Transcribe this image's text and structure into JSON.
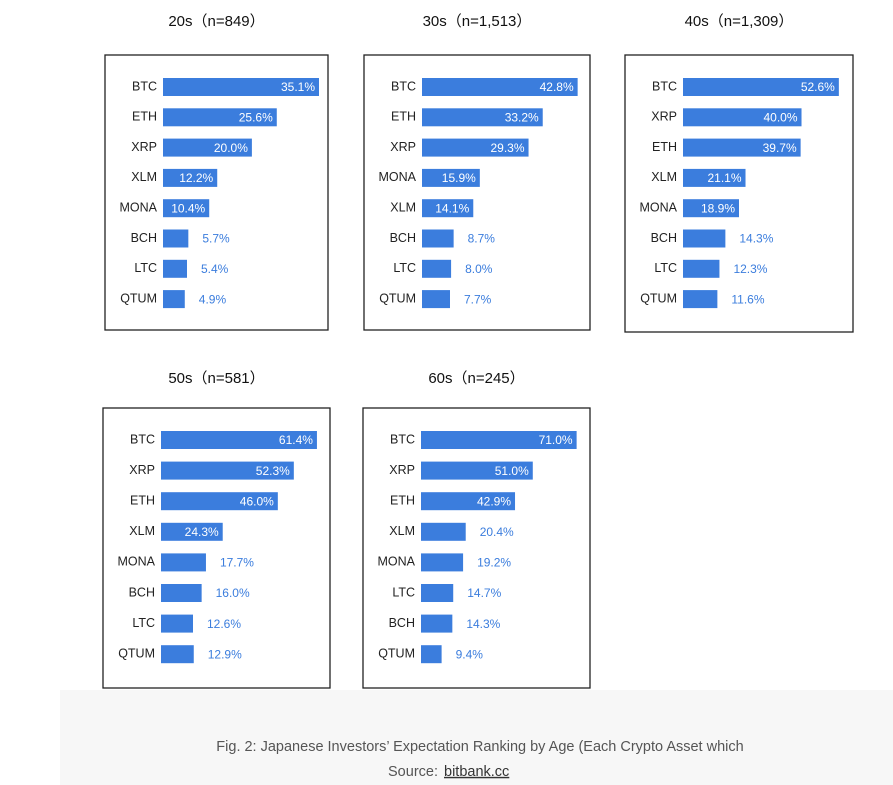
{
  "chart_data": [
    {
      "type": "bar",
      "orientation": "horizontal",
      "title": "20s（n=849）",
      "color": "#3b7ddd",
      "categories": [
        "BTC",
        "ETH",
        "XRP",
        "XLM",
        "MONA",
        "BCH",
        "LTC",
        "QTUM"
      ],
      "values": [
        35.1,
        25.6,
        20.0,
        12.2,
        10.4,
        5.7,
        5.4,
        4.9
      ],
      "value_labels": [
        "35.1%",
        "25.6%",
        "20.0%",
        "12.2%",
        "10.4%",
        "5.7%",
        "5.4%",
        "4.9%"
      ],
      "xlim": [
        0,
        36
      ]
    },
    {
      "type": "bar",
      "orientation": "horizontal",
      "title": "30s（n=1,513）",
      "color": "#3b7ddd",
      "categories": [
        "BTC",
        "ETH",
        "XRP",
        "MONA",
        "XLM",
        "BCH",
        "LTC",
        "QTUM"
      ],
      "values": [
        42.8,
        33.2,
        29.3,
        15.9,
        14.1,
        8.7,
        8.0,
        7.7
      ],
      "value_labels": [
        "42.8%",
        "33.2%",
        "29.3%",
        "15.9%",
        "14.1%",
        "8.7%",
        "8.0%",
        "7.7%"
      ],
      "xlim": [
        0,
        44
      ]
    },
    {
      "type": "bar",
      "orientation": "horizontal",
      "title": "40s（n=1,309）",
      "color": "#3b7ddd",
      "categories": [
        "BTC",
        "XRP",
        "ETH",
        "XLM",
        "MONA",
        "BCH",
        "LTC",
        "QTUM"
      ],
      "values": [
        52.6,
        40.0,
        39.7,
        21.1,
        18.9,
        14.3,
        12.3,
        11.6
      ],
      "value_labels": [
        "52.6%",
        "40.0%",
        "39.7%",
        "21.1%",
        "18.9%",
        "14.3%",
        "12.3%",
        "11.6%"
      ],
      "xlim": [
        0,
        54
      ]
    },
    {
      "type": "bar",
      "orientation": "horizontal",
      "title": "50s（n=581）",
      "color": "#3b7ddd",
      "categories": [
        "BTC",
        "XRP",
        "ETH",
        "XLM",
        "MONA",
        "BCH",
        "LTC",
        "QTUM"
      ],
      "values": [
        61.4,
        52.3,
        46.0,
        24.3,
        17.7,
        16.0,
        12.6,
        12.9
      ],
      "value_labels": [
        "61.4%",
        "52.3%",
        "46.0%",
        "24.3%",
        "17.7%",
        "16.0%",
        "12.6%",
        "12.9%"
      ],
      "xlim": [
        0,
        63
      ]
    },
    {
      "type": "bar",
      "orientation": "horizontal",
      "title": "60s（n=245）",
      "color": "#3b7ddd",
      "categories": [
        "BTC",
        "XRP",
        "ETH",
        "XLM",
        "MONA",
        "LTC",
        "BCH",
        "QTUM"
      ],
      "values": [
        71.0,
        51.0,
        42.9,
        20.4,
        19.2,
        14.7,
        14.3,
        9.4
      ],
      "value_labels": [
        "71.0%",
        "51.0%",
        "42.9%",
        "20.4%",
        "19.2%",
        "14.7%",
        "14.3%",
        "9.4%"
      ],
      "xlim": [
        0,
        73
      ]
    }
  ],
  "caption": "Fig. 2: Japanese Investors’ Expectation Ranking by Age (Each Crypto Asset which",
  "source": {
    "label": "Source:",
    "link": "bitbank.cc"
  }
}
